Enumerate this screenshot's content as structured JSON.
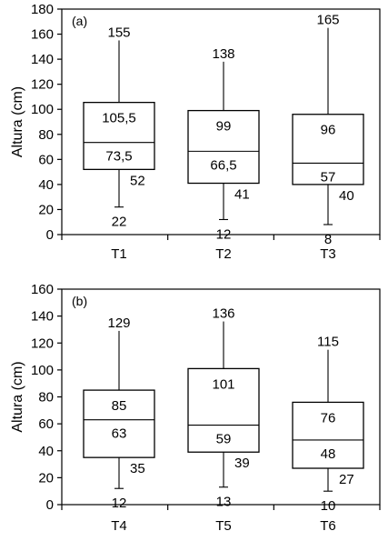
{
  "chart_data": [
    {
      "type": "box",
      "panel_label": "(a)",
      "ylabel": "Altura (cm)",
      "ylim": [
        0,
        180
      ],
      "yticks": [
        0,
        20,
        40,
        60,
        80,
        100,
        120,
        140,
        160,
        180
      ],
      "categories": [
        "T1",
        "T2",
        "T3"
      ],
      "boxes": [
        {
          "category": "T1",
          "max": 155,
          "q3": 105.5,
          "median": 73.5,
          "q1": 52,
          "min": 22,
          "labels": {
            "max": "155",
            "q3": "105,5",
            "median": "73,5",
            "q1": "52",
            "min": "22"
          }
        },
        {
          "category": "T2",
          "max": 138,
          "q3": 99,
          "median": 66.5,
          "q1": 41,
          "min": 12,
          "labels": {
            "max": "138",
            "q3": "99",
            "median": "66,5",
            "q1": "41",
            "min": "12"
          }
        },
        {
          "category": "T3",
          "max": 165,
          "q3": 96,
          "median": 57,
          "q1": 40,
          "min": 8,
          "labels": {
            "max": "165",
            "q3": "96",
            "median": "57",
            "q1": "40",
            "min": "8"
          }
        }
      ]
    },
    {
      "type": "box",
      "panel_label": "(b)",
      "ylabel": "Altura (cm)",
      "ylim": [
        0,
        160
      ],
      "yticks": [
        0,
        20,
        40,
        60,
        80,
        100,
        120,
        140,
        160
      ],
      "categories": [
        "T4",
        "T5",
        "T6"
      ],
      "boxes": [
        {
          "category": "T4",
          "max": 129,
          "q3": 85,
          "median": 63,
          "q1": 35,
          "min": 12,
          "labels": {
            "max": "129",
            "q3": "85",
            "median": "63",
            "q1": "35",
            "min": "12"
          }
        },
        {
          "category": "T5",
          "max": 136,
          "q3": 101,
          "median": 59,
          "q1": 39,
          "min": 13,
          "labels": {
            "max": "136",
            "q3": "101",
            "median": "59",
            "q1": "39",
            "min": "13"
          }
        },
        {
          "category": "T6",
          "max": 115,
          "q3": 76,
          "median": 48,
          "q1": 27,
          "min": 10,
          "labels": {
            "max": "115",
            "q3": "76",
            "median": "48",
            "q1": "27",
            "min": "10"
          }
        }
      ]
    }
  ]
}
